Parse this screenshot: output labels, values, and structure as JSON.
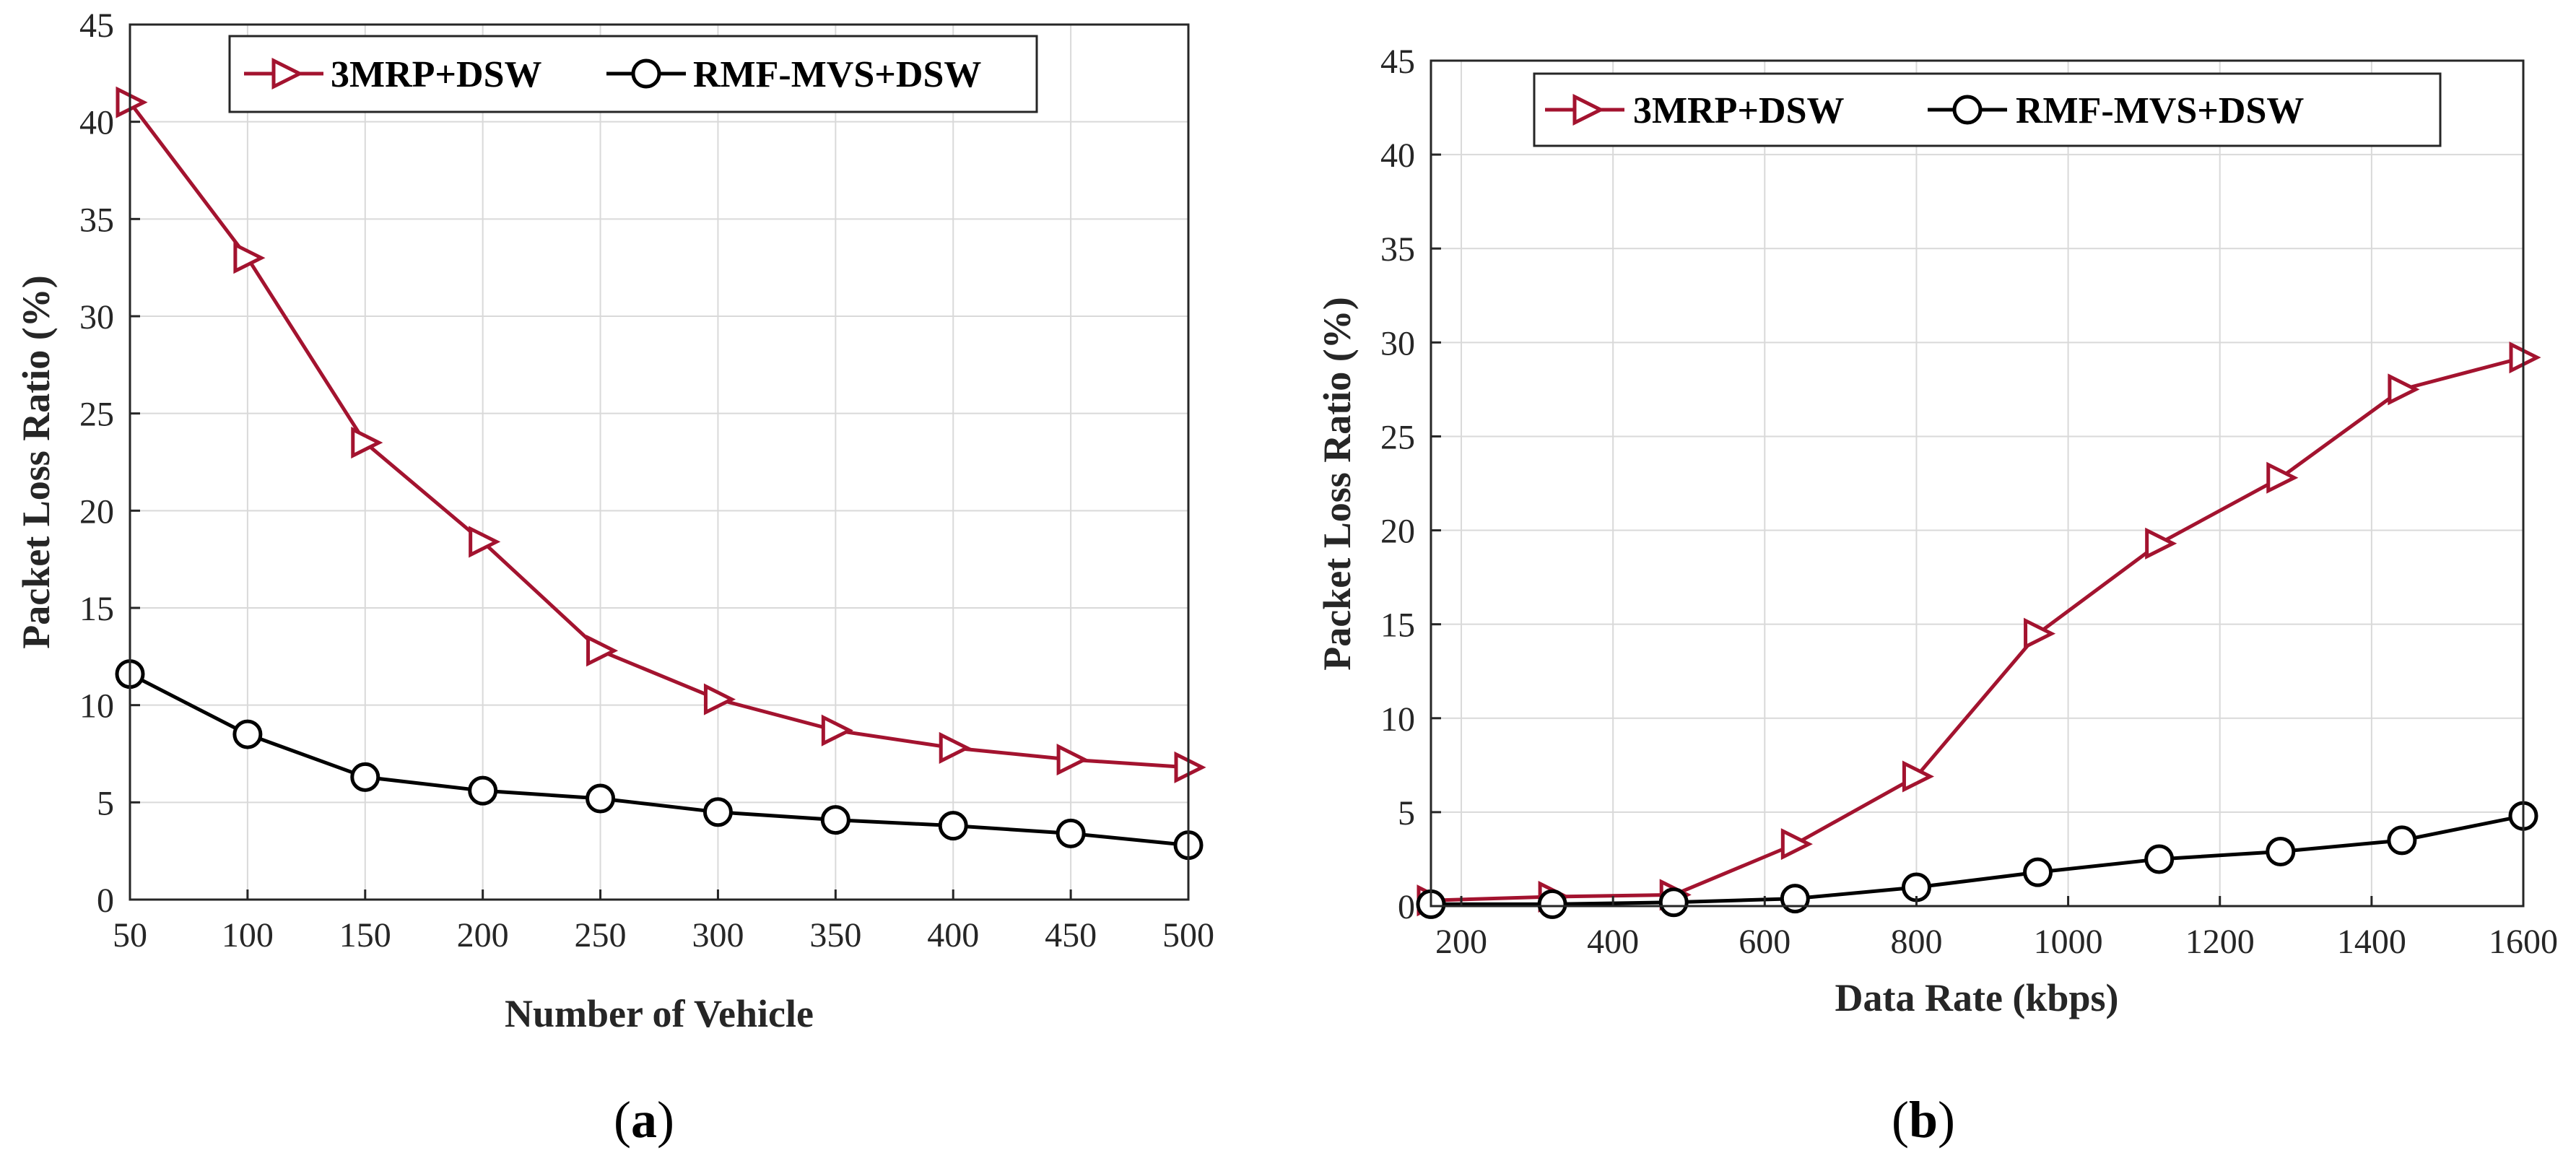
{
  "colors": {
    "series_a": "#a3132f",
    "series_b": "#000000",
    "grid": "#d9d9d9",
    "axis": "#262626"
  },
  "chart_data": [
    {
      "type": "line",
      "caption": "a",
      "title": "",
      "xlabel": "Number of Vehicle",
      "ylabel": "Packet Loss Ratio (%)",
      "xlim": [
        50,
        500
      ],
      "ylim": [
        0,
        45
      ],
      "xticks": [
        50,
        100,
        150,
        200,
        250,
        300,
        350,
        400,
        450,
        500
      ],
      "yticks": [
        0,
        5,
        10,
        15,
        20,
        25,
        30,
        35,
        40,
        45
      ],
      "grid": true,
      "legend_position": "top",
      "x": [
        50,
        100,
        150,
        200,
        250,
        300,
        350,
        400,
        450,
        500
      ],
      "series": [
        {
          "name": "3MRP+DSW",
          "marker": "triangle-right",
          "color": "#a3132f",
          "values": [
            41.0,
            33.0,
            23.5,
            18.4,
            12.8,
            10.3,
            8.7,
            7.8,
            7.2,
            6.8
          ]
        },
        {
          "name": "RMF-MVS+DSW",
          "marker": "circle",
          "color": "#000000",
          "values": [
            11.6,
            8.5,
            6.3,
            5.6,
            5.2,
            4.5,
            4.1,
            3.8,
            3.4,
            2.8
          ]
        }
      ]
    },
    {
      "type": "line",
      "caption": "b",
      "title": "",
      "xlabel": "Data Rate (kbps)",
      "ylabel": "Packet Loss Ratio (%)",
      "xlim": [
        160,
        1600
      ],
      "ylim": [
        0,
        45
      ],
      "xticks": [
        200,
        400,
        600,
        800,
        1000,
        1200,
        1400,
        1600
      ],
      "yticks": [
        0,
        5,
        10,
        15,
        20,
        25,
        30,
        35,
        40,
        45
      ],
      "grid": true,
      "legend_position": "top",
      "x": [
        160,
        320,
        480,
        640,
        800,
        960,
        1120,
        1280,
        1440,
        1600
      ],
      "series": [
        {
          "name": "3MRP+DSW",
          "marker": "triangle-right",
          "color": "#a3132f",
          "values": [
            0.3,
            0.5,
            0.6,
            3.3,
            6.9,
            14.5,
            19.3,
            22.8,
            27.5,
            29.2
          ]
        },
        {
          "name": "RMF-MVS+DSW",
          "marker": "circle",
          "color": "#000000",
          "values": [
            0.1,
            0.1,
            0.2,
            0.4,
            1.0,
            1.8,
            2.5,
            2.9,
            3.5,
            4.8
          ]
        }
      ]
    }
  ]
}
